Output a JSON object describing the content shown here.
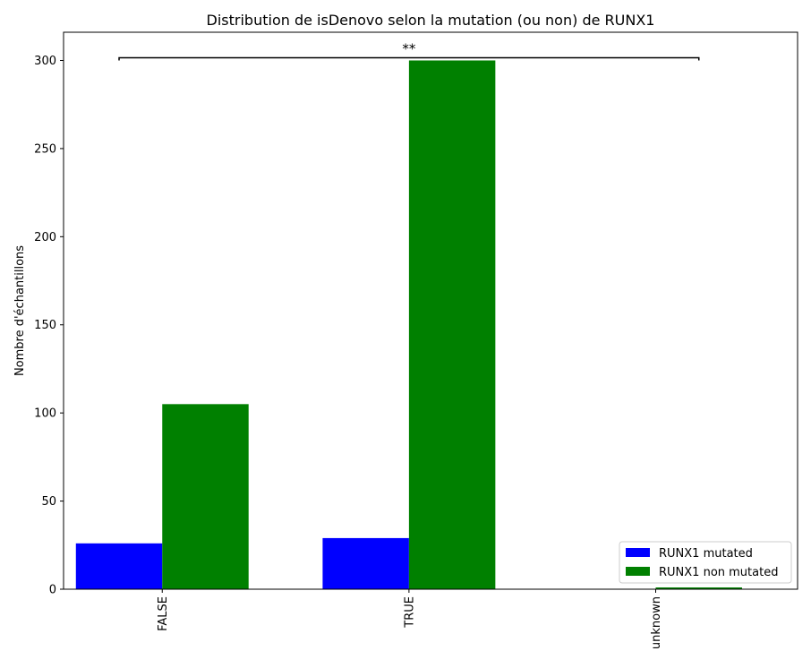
{
  "chart_data": {
    "type": "bar",
    "title": "Distribution de isDenovo selon la mutation (ou non) de RUNX1",
    "xlabel": "",
    "ylabel": "Nombre d'échantillons",
    "categories": [
      "FALSE",
      "TRUE",
      "unknown"
    ],
    "series": [
      {
        "name": "RUNX1 mutated",
        "color": "#0000ff",
        "values": [
          26,
          29,
          0
        ]
      },
      {
        "name": "RUNX1 non mutated",
        "color": "#008000",
        "values": [
          105,
          300,
          1
        ]
      }
    ],
    "ylim": [
      0,
      316
    ],
    "yticks": [
      0,
      50,
      100,
      150,
      200,
      250,
      300
    ],
    "grid": false,
    "legend_position": "lower-right",
    "significance": {
      "label": "**",
      "from_category": "FALSE",
      "to_category": "unknown",
      "y": 301.5
    }
  }
}
